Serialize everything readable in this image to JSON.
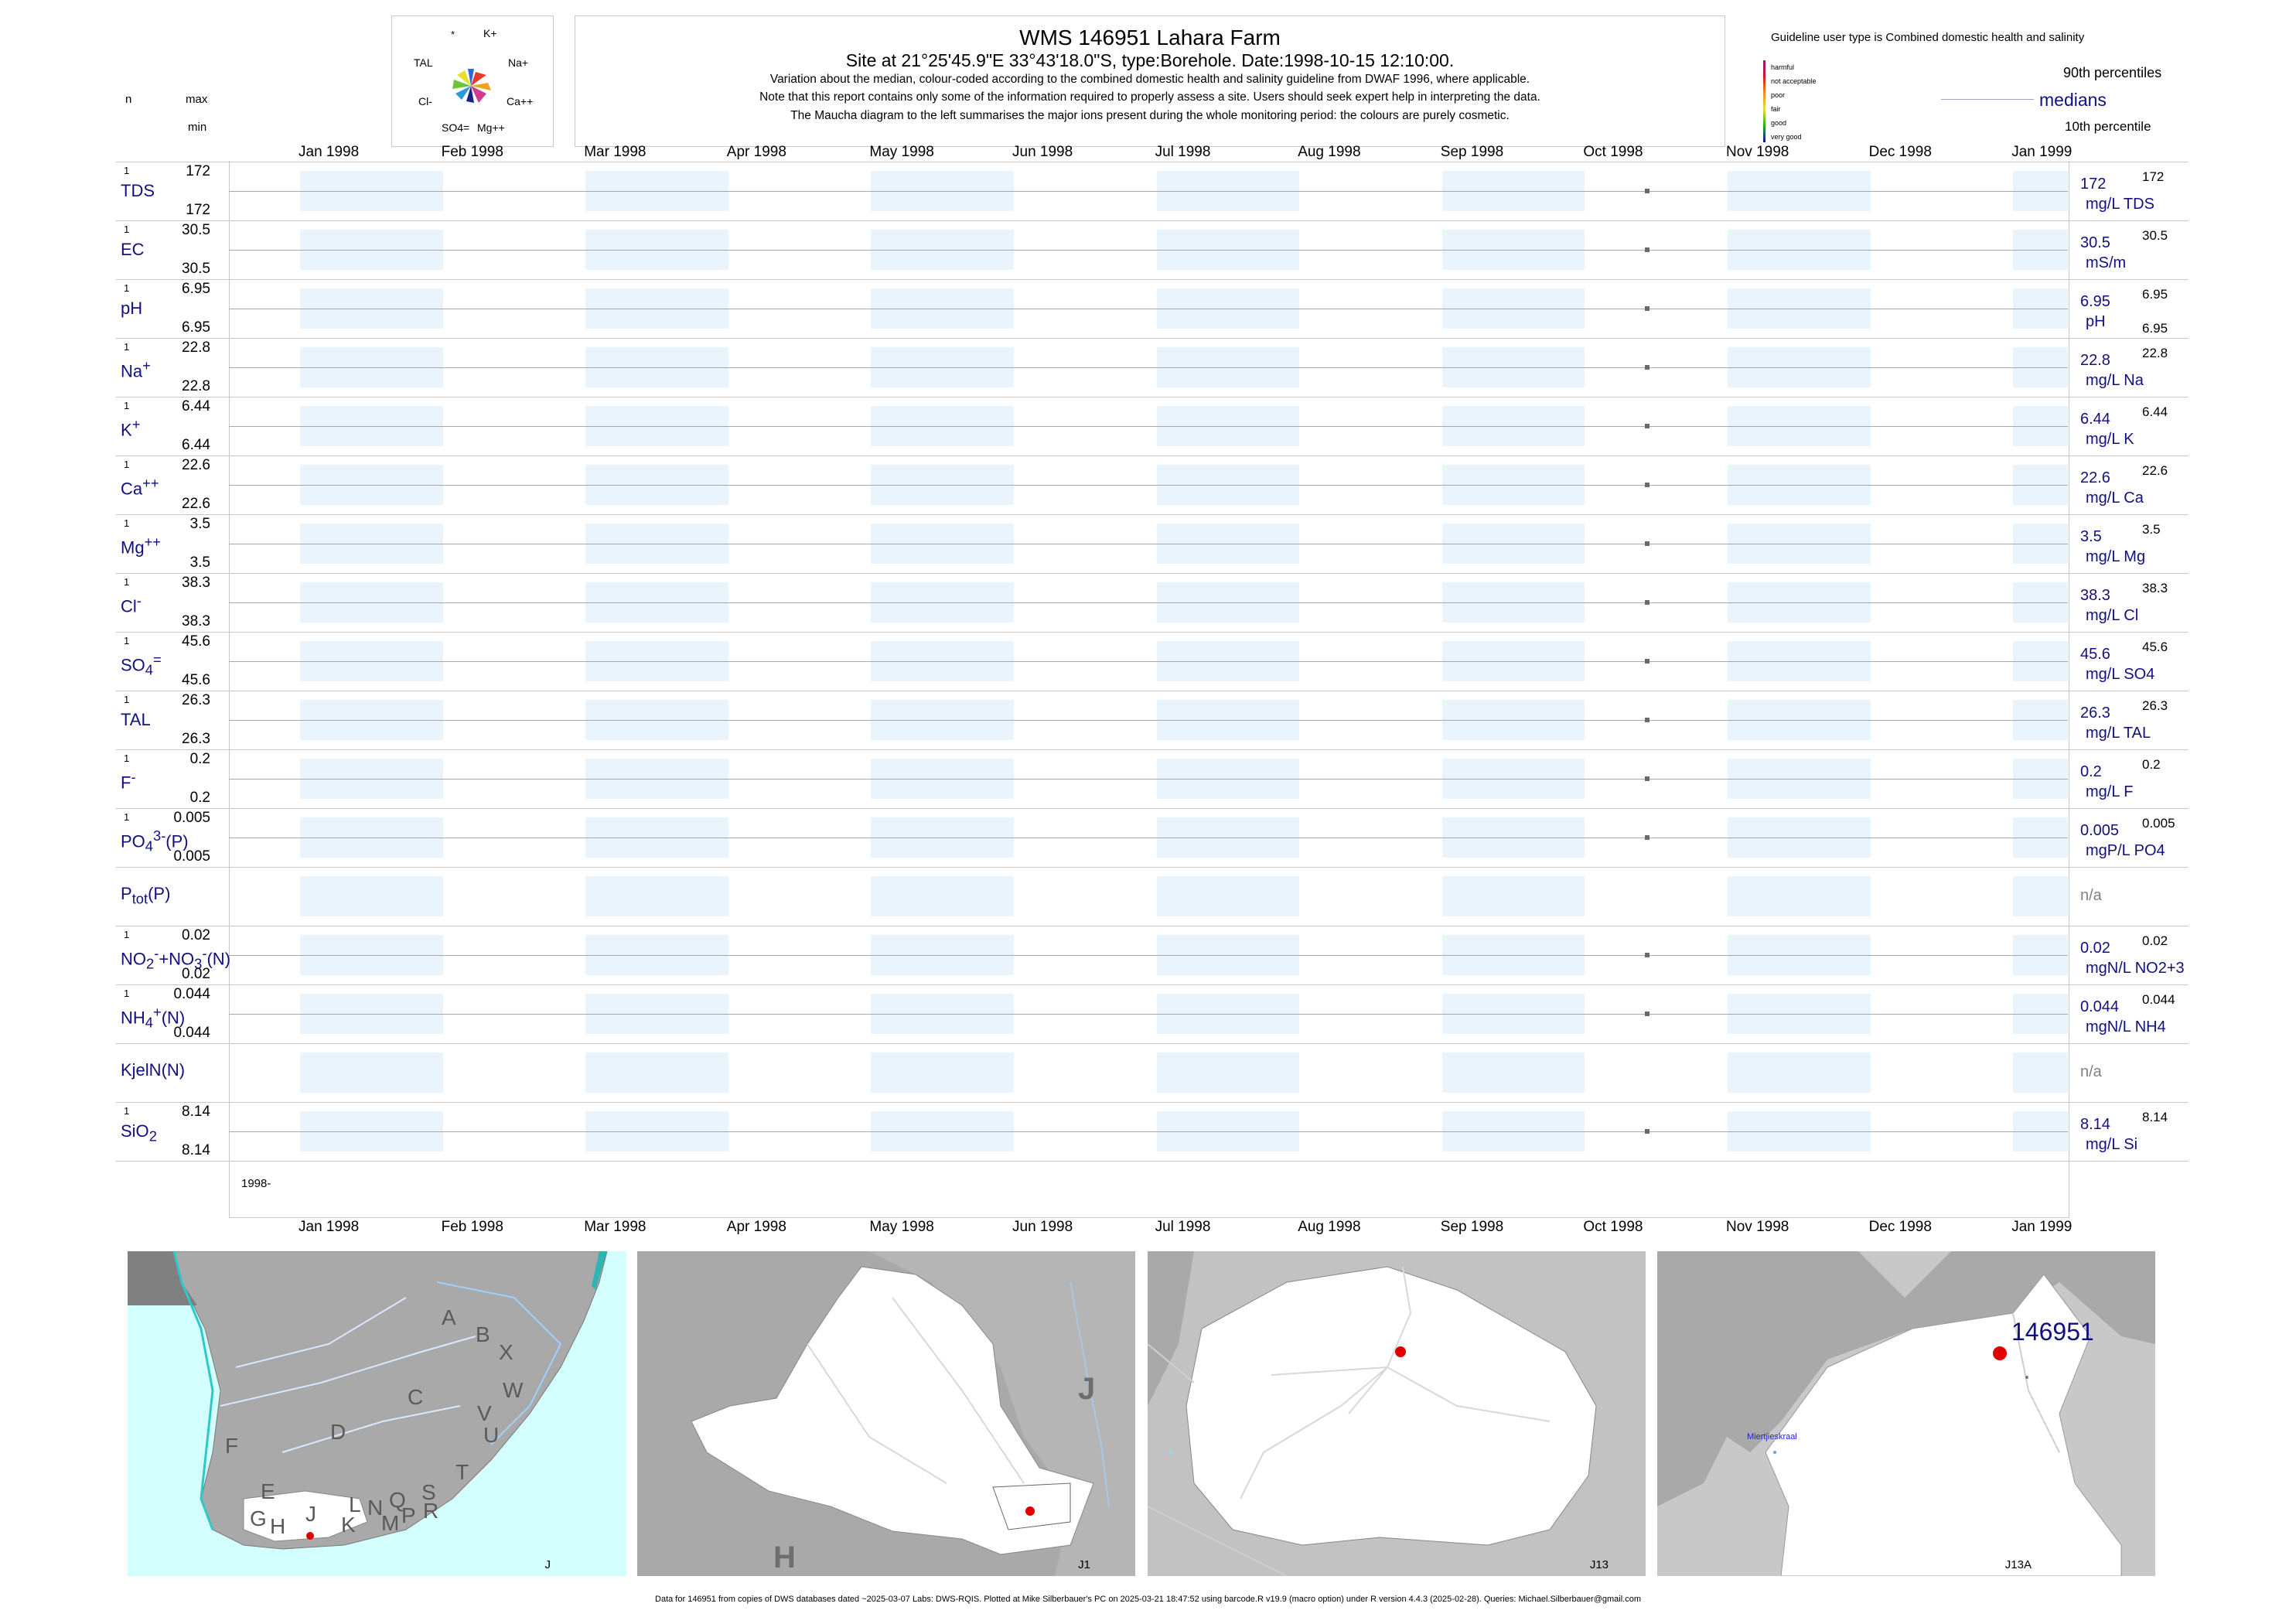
{
  "header": {
    "title": "WMS 146951  Lahara Farm",
    "site": "Site at 21°25'45.9\"E 33°43'18.0\"S, type:Borehole. Date:1998-10-15 12:10:00.",
    "line1": "Variation about the median,  colour-coded according to the combined domestic health and salinity guideline from DWAF 1996, where applicable.",
    "line2": "Note that this report contains only some of the information required to properly assess a site. Users should seek expert help in interpreting the data.",
    "line3": "The Maucha diagram to the left summarises the major ions present during the whole monitoring period: the colours are purely cosmetic."
  },
  "left_header": {
    "n": "n",
    "max": "max",
    "min": "min"
  },
  "maucha": {
    "labels": {
      "star": "*",
      "k": "K+",
      "tal": "TAL",
      "na": "Na+",
      "cl": "Cl-",
      "ca": "Ca++",
      "so4": "SO4=",
      "mg": "Mg++"
    }
  },
  "guideline": {
    "title": "Guideline user type is Combined domestic health and salinity",
    "levels": [
      {
        "label": "harmful",
        "color": "#8b1a8b"
      },
      {
        "label": "not acceptable",
        "color": "#e0102a"
      },
      {
        "label": "poor",
        "color": "#f09020"
      },
      {
        "label": "fair",
        "color": "#e8e020"
      },
      {
        "label": "good",
        "color": "#20b020"
      },
      {
        "label": "very good",
        "color": "#1010a0"
      }
    ],
    "p90": "90th percentiles",
    "medians": "medians",
    "p10": "10th percentile"
  },
  "axis": {
    "months": [
      "Jan 1998",
      "Feb 1998",
      "Mar 1998",
      "Apr 1998",
      "May 1998",
      "Jun 1998",
      "Jul 1998",
      "Aug 1998",
      "Sep 1998",
      "Oct 1998",
      "Nov 1998",
      "Dec 1998",
      "Jan 1999"
    ],
    "year_label": "1998-"
  },
  "chart_data": {
    "type": "scatter",
    "sample_date": "1998-10-15",
    "x_range": [
      "1998-01-01",
      "1999-01-01"
    ],
    "series": [
      {
        "label": "TDS",
        "n": "1",
        "max": "172",
        "min": "172",
        "median": "172",
        "p90": "172",
        "unit": "mg/L TDS",
        "value": 172
      },
      {
        "label": "EC",
        "n": "1",
        "max": "30.5",
        "min": "30.5",
        "median": "30.5",
        "p90": "30.5",
        "unit": "mS/m",
        "value": 30.5
      },
      {
        "label": "pH",
        "n": "1",
        "max": "6.95",
        "min": "6.95",
        "median": "6.95",
        "p90": "6.95",
        "p10": "6.95",
        "unit": "pH",
        "value": 6.95
      },
      {
        "label": "Na+",
        "n": "1",
        "max": "22.8",
        "min": "22.8",
        "median": "22.8",
        "p90": "22.8",
        "unit": "mg/L Na",
        "value": 22.8
      },
      {
        "label": "K+",
        "n": "1",
        "max": "6.44",
        "min": "6.44",
        "median": "6.44",
        "p90": "6.44",
        "unit": "mg/L K",
        "value": 6.44
      },
      {
        "label": "Ca++",
        "n": "1",
        "max": "22.6",
        "min": "22.6",
        "median": "22.6",
        "p90": "22.6",
        "unit": "mg/L Ca",
        "value": 22.6
      },
      {
        "label": "Mg++",
        "n": "1",
        "max": "3.5",
        "min": "3.5",
        "median": "3.5",
        "p90": "3.5",
        "unit": "mg/L Mg",
        "value": 3.5
      },
      {
        "label": "Cl-",
        "n": "1",
        "max": "38.3",
        "min": "38.3",
        "median": "38.3",
        "p90": "38.3",
        "unit": "mg/L Cl",
        "value": 38.3
      },
      {
        "label": "SO4=",
        "n": "1",
        "max": "45.6",
        "min": "45.6",
        "median": "45.6",
        "p90": "45.6",
        "unit": "mg/L SO4",
        "value": 45.6
      },
      {
        "label": "TAL",
        "n": "1",
        "max": "26.3",
        "min": "26.3",
        "median": "26.3",
        "p90": "26.3",
        "unit": "mg/L TAL",
        "value": 26.3
      },
      {
        "label": "F-",
        "n": "1",
        "max": "0.2",
        "min": "0.2",
        "median": "0.2",
        "p90": "0.2",
        "unit": "mg/L F",
        "value": 0.2
      },
      {
        "label": "PO43-(P)",
        "n": "1",
        "max": "0.005",
        "min": "0.005",
        "median": "0.005",
        "p90": "0.005",
        "unit": "mgP/L PO4",
        "value": 0.005
      },
      {
        "label": "Ptot(P)",
        "n": "",
        "max": "",
        "min": "",
        "median": "n/a",
        "p90": "",
        "unit": "",
        "value": null
      },
      {
        "label": "NO2-+NO3-(N)",
        "n": "1",
        "max": "0.02",
        "min": "0.02",
        "median": "0.02",
        "p90": "0.02",
        "unit": "mgN/L NO2+3",
        "value": 0.02
      },
      {
        "label": "NH4+(N)",
        "n": "1",
        "max": "0.044",
        "min": "0.044",
        "median": "0.044",
        "p90": "0.044",
        "unit": "mgN/L NH4",
        "value": 0.044
      },
      {
        "label": "KjelN(N)",
        "n": "",
        "max": "",
        "min": "",
        "median": "n/a",
        "p90": "",
        "unit": "",
        "value": null
      },
      {
        "label": "SiO2",
        "n": "1",
        "max": "8.14",
        "min": "8.14",
        "median": "8.14",
        "p90": "8.14",
        "unit": "mg/L Si",
        "value": 8.14
      }
    ]
  },
  "maps": {
    "m1": {
      "corner": "J",
      "letters": [
        "A",
        "B",
        "X",
        "C",
        "W",
        "D",
        "V",
        "U",
        "F",
        "T",
        "E",
        "S",
        "R",
        "L",
        "N",
        "Q",
        "P",
        "M",
        "G",
        "H",
        "J",
        "K"
      ]
    },
    "m2": {
      "corner": "J1",
      "big_j": "J",
      "big_h": "H"
    },
    "m3": {
      "corner": "J13"
    },
    "m4": {
      "corner": "J13A",
      "site": "146951",
      "place": "Miertjieskraal"
    }
  },
  "footer": "Data for 146951 from copies of DWS databases dated ~2025-03-07 Labs: DWS-RQIS. Plotted at Mike Silberbauer's PC on 2025-03-21 18:47:52 using barcode.R v19.9 (macro option) under R version 4.4.3 (2025-02-28). Queries: Michael.Silberbauer@gmail.com"
}
